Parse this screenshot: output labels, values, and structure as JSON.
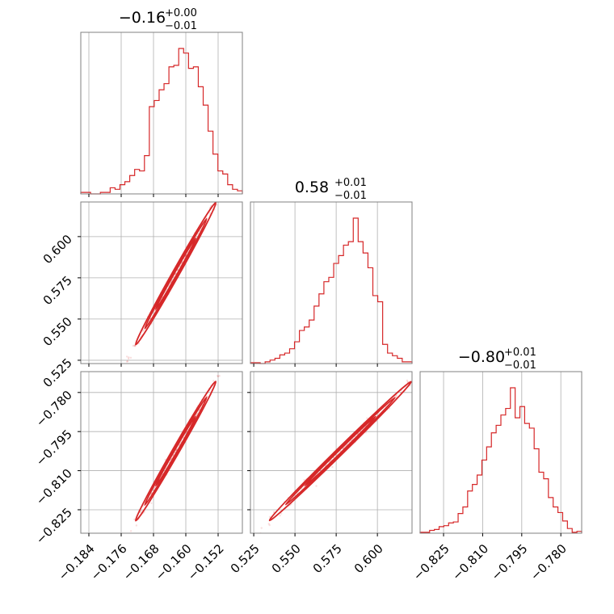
{
  "chart_data": {
    "type": "corner",
    "color": "#d62728",
    "grid": true,
    "parameters": [
      {
        "range": [
          -0.186,
          -0.146
        ],
        "ticks": [
          -0.184,
          -0.176,
          -0.168,
          -0.16,
          -0.152
        ],
        "tick_labels": [
          "−0.184",
          "−0.176",
          "−0.168",
          "−0.160",
          "−0.152"
        ],
        "title": {
          "value": "−0.16",
          "upper": "+0.00",
          "lower": "−0.01"
        },
        "histogram": [
          1,
          1,
          0,
          0,
          1,
          1,
          4,
          3,
          6,
          8,
          12,
          16,
          15,
          25,
          57,
          61,
          68,
          72,
          83,
          84,
          95,
          92,
          82,
          83,
          70,
          58,
          41,
          26,
          15,
          13,
          6,
          3,
          2
        ]
      },
      {
        "range": [
          0.523,
          0.621
        ],
        "ticks": [
          0.525,
          0.55,
          0.575,
          0.6
        ],
        "tick_labels": [
          "0.525",
          "0.550",
          "0.575",
          "0.600"
        ],
        "title": {
          "value": "0.58",
          "upper": "+0.01",
          "lower": "−0.01"
        },
        "histogram": [
          1,
          1,
          0,
          2,
          4,
          6,
          10,
          12,
          17,
          25,
          38,
          42,
          50,
          66,
          80,
          94,
          99,
          115,
          124,
          136,
          140,
          167,
          140,
          127,
          110,
          78,
          71,
          22,
          12,
          9,
          6,
          2,
          2
        ]
      },
      {
        "range": [
          -0.834,
          -0.772
        ],
        "ticks": [
          -0.825,
          -0.81,
          -0.795,
          -0.78
        ],
        "tick_labels": [
          "−0.825",
          "−0.810",
          "−0.795",
          "−0.780"
        ],
        "title": {
          "value": "−0.80",
          "upper": "+0.01",
          "lower": "−0.01"
        },
        "histogram": [
          1,
          1,
          3,
          4,
          7,
          8,
          11,
          12,
          21,
          28,
          45,
          52,
          62,
          78,
          92,
          107,
          115,
          126,
          133,
          155,
          123,
          135,
          117,
          112,
          90,
          65,
          58,
          38,
          28,
          22,
          13,
          5,
          1,
          2
        ]
      }
    ],
    "scatter_pairs": [
      {
        "row": 1,
        "col": 0,
        "x_center": -0.1625,
        "x_spread": 0.0045,
        "slope": 4.35
      },
      {
        "row": 2,
        "col": 0,
        "x_center": -0.1625,
        "x_spread": 0.0045,
        "slope": 2.7
      },
      {
        "row": 2,
        "col": 1,
        "x_center": 0.5775,
        "x_spread": 0.0195,
        "slope": 0.62
      }
    ],
    "panels": [
      {
        "row": 0,
        "col": 0,
        "kind": "hist",
        "param": 0
      },
      {
        "row": 1,
        "col": 0,
        "kind": "2d",
        "x": 0,
        "y": 1
      },
      {
        "row": 1,
        "col": 1,
        "kind": "hist",
        "param": 1
      },
      {
        "row": 2,
        "col": 0,
        "kind": "2d",
        "x": 0,
        "y": 2
      },
      {
        "row": 2,
        "col": 1,
        "kind": "2d",
        "x": 1,
        "y": 2
      },
      {
        "row": 2,
        "col": 2,
        "kind": "hist",
        "param": 2
      }
    ]
  }
}
